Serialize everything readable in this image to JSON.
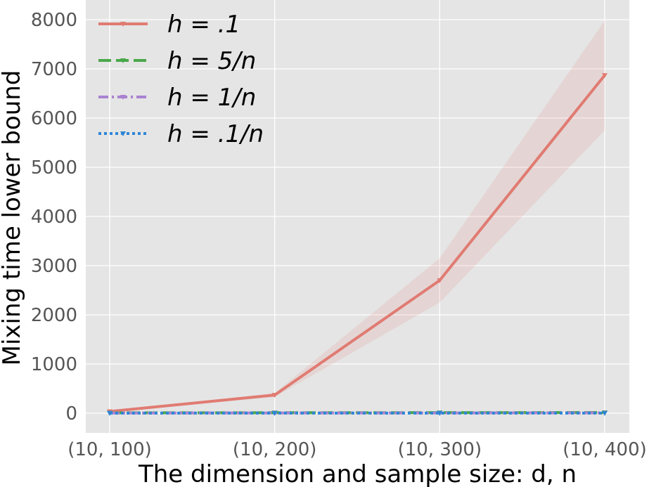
{
  "chart_data": {
    "type": "line",
    "title": "",
    "xlabel": "The dimension and sample size: d, n",
    "ylabel": "Mixing time lower bound",
    "categories": [
      "(10, 100)",
      "(10, 200)",
      "(10, 300)",
      "(10, 400)"
    ],
    "ylim": [
      -400,
      8400
    ],
    "yticks": [
      0,
      1000,
      2000,
      3000,
      4000,
      5000,
      6000,
      7000,
      8000
    ],
    "grid": true,
    "legend_position": "top-left",
    "series": [
      {
        "name": "h = .1",
        "legend_label": "h = .1",
        "values": [
          35,
          370,
          2700,
          6870
        ],
        "band_lower": [
          25,
          330,
          2250,
          5750
        ],
        "band_upper": [
          45,
          410,
          3150,
          7980
        ],
        "color": "#e07b72",
        "dash": "solid"
      },
      {
        "name": "h = 5/n",
        "legend_label": "h = 5/n",
        "values": [
          8,
          10,
          12,
          14
        ],
        "color": "#4aa84a",
        "dash": "dashed"
      },
      {
        "name": "h = 1/n",
        "legend_label": "h = 1/n",
        "values": [
          4,
          5,
          6,
          7
        ],
        "color": "#a983d2",
        "dash": "dashdot"
      },
      {
        "name": "h = .1/n",
        "legend_label": "h = .1/n",
        "values": [
          1,
          1,
          1,
          1
        ],
        "color": "#2f86d6",
        "dash": "dotted"
      }
    ],
    "colors": {
      "plot_background": "#e5e5e5",
      "grid": "#ffffff",
      "band": "#e07b72"
    }
  }
}
